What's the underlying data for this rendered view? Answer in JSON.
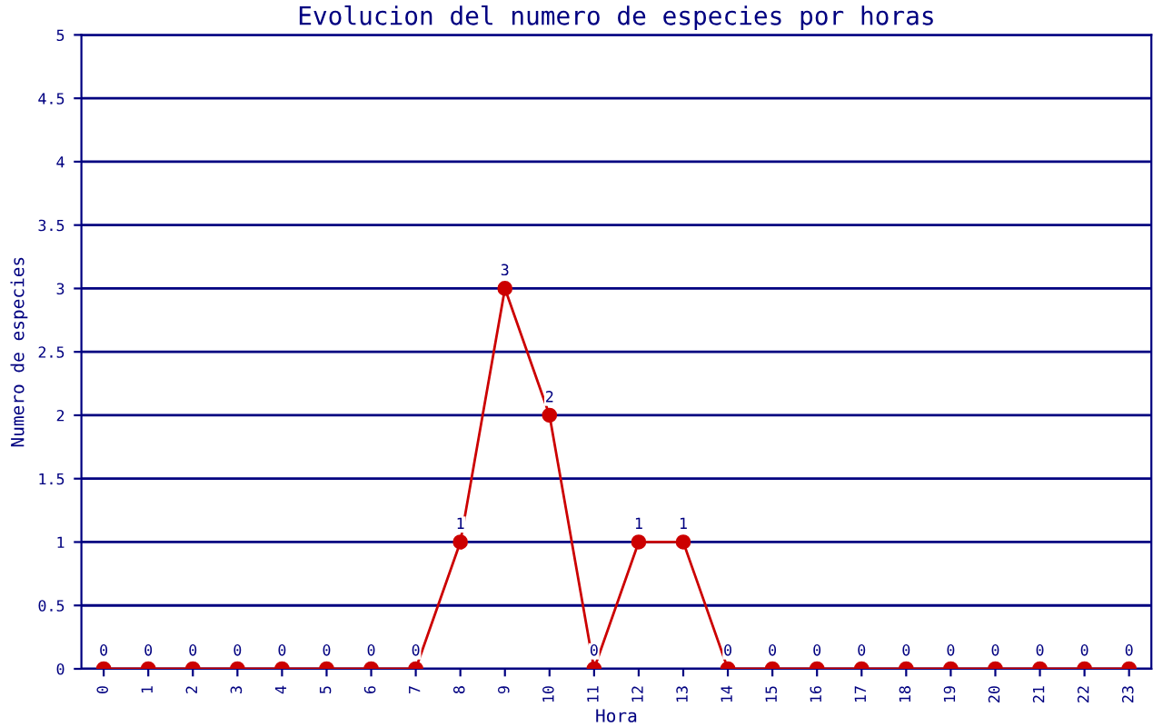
{
  "chart_data": {
    "type": "line",
    "title": "Evolucion del numero de especies por horas",
    "xlabel": "Hora",
    "ylabel": "Numero de especies",
    "categories": [
      "0",
      "1",
      "2",
      "3",
      "4",
      "5",
      "6",
      "7",
      "8",
      "9",
      "10",
      "11",
      "12",
      "13",
      "14",
      "15",
      "16",
      "17",
      "18",
      "19",
      "20",
      "21",
      "22",
      "23"
    ],
    "series": [
      {
        "color": "#cc0000",
        "values": [
          0,
          0,
          0,
          0,
          0,
          0,
          0,
          0,
          1,
          3,
          2,
          0,
          1,
          1,
          0,
          0,
          0,
          0,
          0,
          0,
          0,
          0,
          0,
          0
        ]
      }
    ],
    "ylim": [
      0,
      5
    ],
    "yticks": [
      0,
      0.5,
      1,
      1.5,
      2,
      2.5,
      3,
      3.5,
      4,
      4.5,
      5
    ],
    "grid": "y",
    "marker": "circle",
    "line_style": "solid",
    "data_labels": true
  }
}
